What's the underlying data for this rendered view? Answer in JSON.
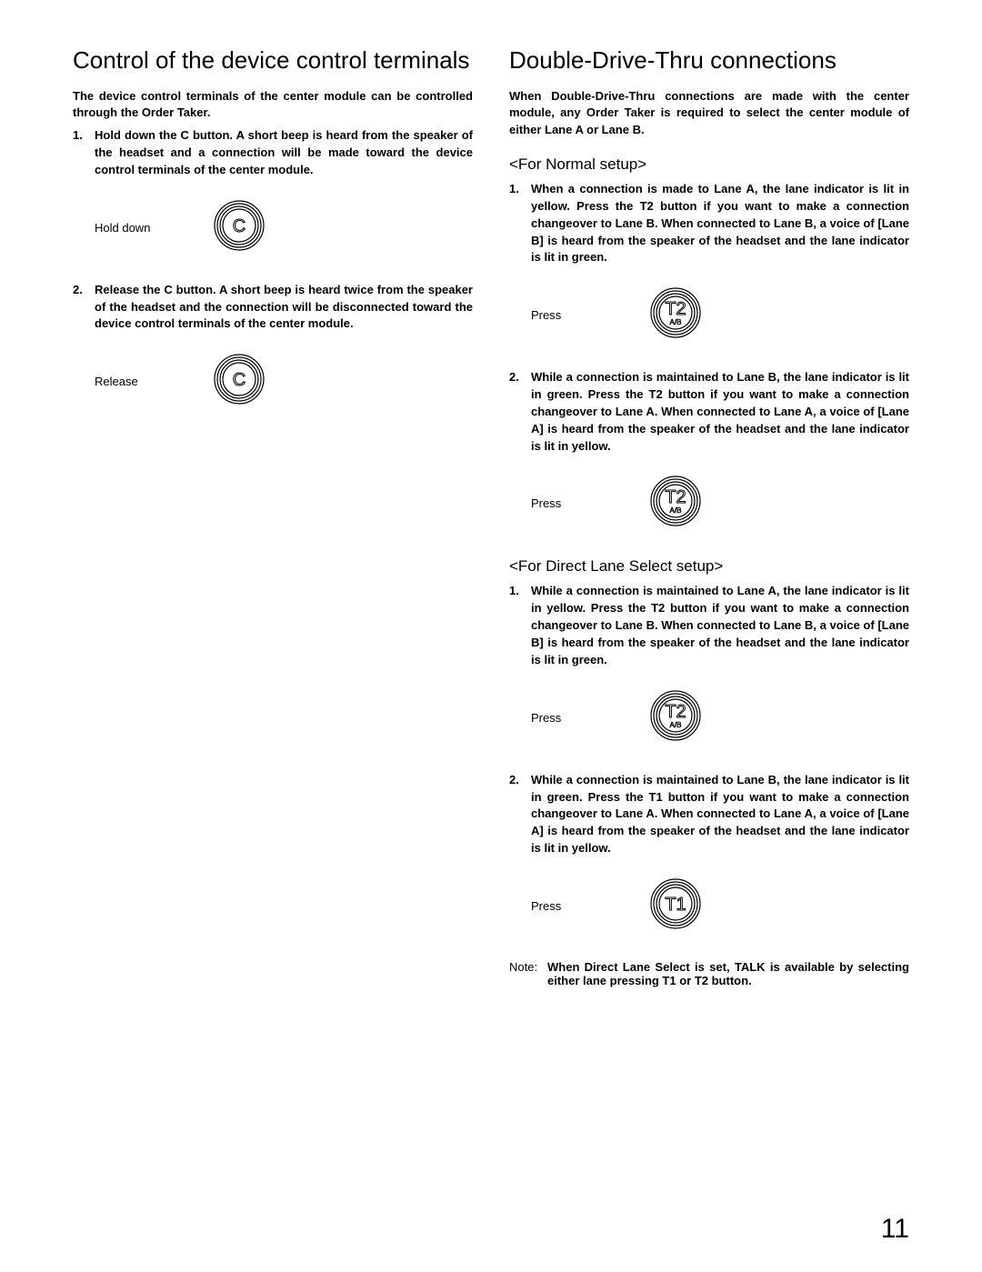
{
  "left": {
    "title": "Control of the device control terminals",
    "intro": "The device control terminals of the center module can be controlled through the Order Taker.",
    "step1": "Hold down the C button. A short beep is heard from the speaker of the headset and a connection will be made toward the device control terminals of the center module.",
    "step2": "Release the C button. A short beep is heard twice from the speaker of the headset and the connection will be disconnected toward the device control terminals of the center module.",
    "fig1_label": "Hold down",
    "fig2_label": "Release"
  },
  "right": {
    "title": "Double-Drive-Thru connections",
    "intro": "When Double-Drive-Thru connections are made with the center module, any Order Taker is required to select the center module of either Lane A or Lane B.",
    "normal_heading": "<For Normal setup>",
    "normal_step1": "When a connection is made to Lane A, the lane indicator is lit in yellow. Press the T2 button if you want to make a connection changeover to Lane B. When connected to Lane B, a voice of [Lane B] is heard from the speaker of the headset and the lane indicator is lit in green.",
    "normal_step2": "While a connection is maintained to Lane B, the lane indicator is lit in green. Press the T2 button if you want to make a connection changeover to Lane A. When connected to Lane A, a voice of [Lane A] is heard from the speaker of the headset and the lane indicator is lit in yellow.",
    "direct_heading": "<For Direct Lane Select setup>",
    "direct_step1": "While a connection is maintained to Lane A, the lane indicator is lit in yellow. Press the T2 button if you want to make a connection changeover to Lane B. When connected to Lane B, a voice of [Lane B] is heard from the speaker of the headset and the lane indicator is lit in green.",
    "direct_step2": "While a connection is maintained to Lane B, the lane indicator is lit in green. Press the T1 button if you want to make a connection changeover to Lane A. When connected to Lane A, a voice of [Lane A] is heard from the speaker of the headset and the lane indicator is lit in yellow.",
    "press_label": "Press",
    "note_label": "Note:",
    "note_text": "When Direct Lane Select is set, TALK is available by selecting either lane pressing T1 or T2 button."
  },
  "buttons": {
    "C": {
      "main": "C",
      "sub": ""
    },
    "T2": {
      "main": "T2",
      "sub": "A/B"
    },
    "T1": {
      "main": "T1",
      "sub": ""
    }
  },
  "style": {
    "button_outer_r": 27,
    "button_gap": 3,
    "button_stroke": "#000000",
    "button_fill": "#ffffff",
    "main_font_size": 20,
    "sub_font_size": 8
  },
  "page_number": "11"
}
